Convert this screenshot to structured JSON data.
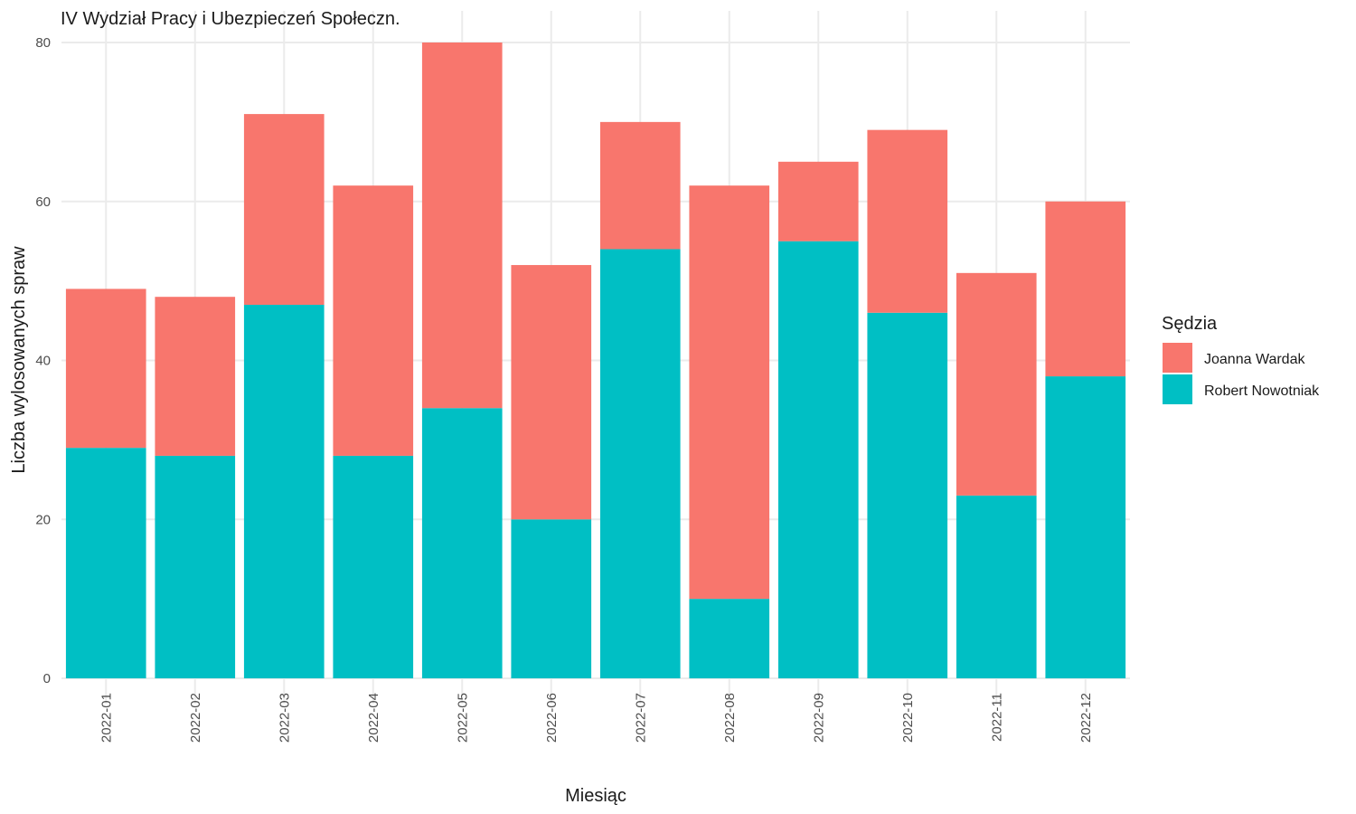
{
  "chart_data": {
    "type": "bar",
    "stacked": true,
    "title": "IV Wydział Pracy i Ubezpieczeń Społeczn.",
    "xlabel": "Miesiąc",
    "ylabel": "Liczba wylosowanych spraw",
    "ylim": [
      0,
      80
    ],
    "yticks": [
      0,
      20,
      40,
      60,
      80
    ],
    "grid": true,
    "legend": {
      "title": "Sędzia",
      "position": "right"
    },
    "categories": [
      "2022-01",
      "2022-02",
      "2022-03",
      "2022-04",
      "2022-05",
      "2022-06",
      "2022-07",
      "2022-08",
      "2022-09",
      "2022-10",
      "2022-11",
      "2022-12"
    ],
    "series": [
      {
        "name": "Robert Nowotniak",
        "color": "#00BFC4",
        "values": [
          29,
          28,
          47,
          28,
          34,
          20,
          54,
          10,
          55,
          46,
          23,
          38
        ]
      },
      {
        "name": "Joanna Wardak",
        "color": "#F8766D",
        "values": [
          20,
          20,
          24,
          34,
          46,
          32,
          16,
          52,
          10,
          23,
          28,
          22
        ]
      }
    ],
    "legend_order": [
      "Joanna Wardak",
      "Robert Nowotniak"
    ]
  }
}
